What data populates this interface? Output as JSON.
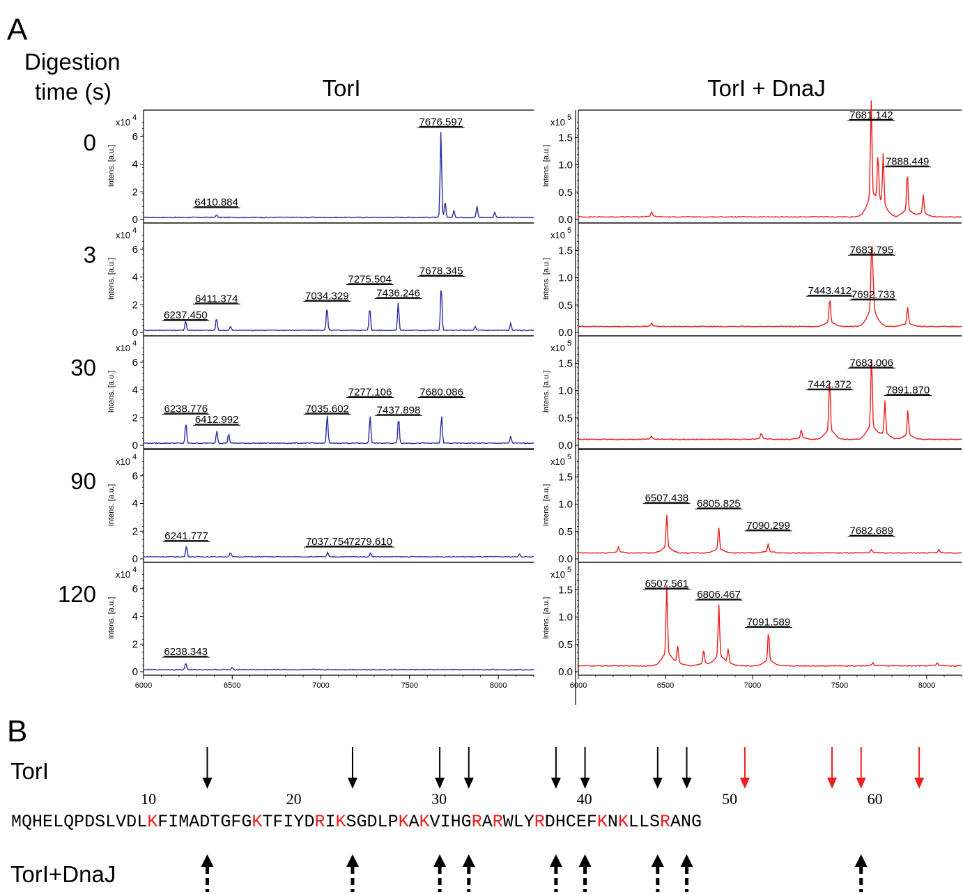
{
  "panels": {
    "a": "A",
    "b": "B"
  },
  "digestion_label_line1": "Digestion",
  "digestion_label_line2": "time (s)",
  "col_headers": [
    "TorI",
    "TorI + DnaJ"
  ],
  "times": [
    "0",
    "3",
    "30",
    "90",
    "120"
  ],
  "y_axis_label": "Intens. [a.u.]",
  "left_exponent": "x10",
  "left_exponent_power": "4",
  "right_exponent": "x10",
  "right_exponent_power": "5",
  "colors": {
    "torI": "#2b2ba0",
    "torI_dnaj": "#ee1c1c",
    "site": "#ee1c1c"
  },
  "chart_data": [
    {
      "type": "line",
      "name": "TorI",
      "x_ticks": [
        "6000",
        "6500",
        "7000",
        "7500",
        "8000"
      ],
      "y_ticks": [
        "0",
        "2",
        "4",
        "6"
      ],
      "xlim": [
        6000,
        8200
      ],
      "ylim": [
        0,
        7.5
      ],
      "rows": [
        {
          "time": "0",
          "peaks": [
            {
              "mz": 6410.884,
              "h": 0.2,
              "label": "6410.884",
              "ly": 1.0
            },
            {
              "mz": 7676.597,
              "h": 6.2,
              "label": "7676.597",
              "ly": 6.8
            },
            {
              "mz": 7700,
              "h": 1.2
            },
            {
              "mz": 7750,
              "h": 0.5
            },
            {
              "mz": 7880,
              "h": 0.8
            },
            {
              "mz": 7980,
              "h": 0.4
            }
          ]
        },
        {
          "time": "3",
          "peaks": [
            {
              "mz": 6237.45,
              "h": 0.7,
              "label": "6237.450",
              "ly": 1.0
            },
            {
              "mz": 6411.374,
              "h": 0.9,
              "label": "6411.374",
              "ly": 2.2
            },
            {
              "mz": 6490,
              "h": 0.3
            },
            {
              "mz": 7034.329,
              "h": 1.7,
              "label": "7034.329",
              "ly": 2.4
            },
            {
              "mz": 7275.504,
              "h": 1.7,
              "label": "7275.504",
              "ly": 3.6
            },
            {
              "mz": 7436.246,
              "h": 2.0,
              "label": "7436.246",
              "ly": 2.6
            },
            {
              "mz": 7678.345,
              "h": 3.3,
              "label": "7678.345",
              "ly": 4.2
            },
            {
              "mz": 7870,
              "h": 0.3
            },
            {
              "mz": 8070,
              "h": 0.5
            }
          ]
        },
        {
          "time": "30",
          "peaks": [
            {
              "mz": 6238.776,
              "h": 1.5,
              "label": "6238.776",
              "ly": 2.4
            },
            {
              "mz": 6412.992,
              "h": 0.9,
              "label": "6412.992",
              "ly": 1.6
            },
            {
              "mz": 6480,
              "h": 0.7
            },
            {
              "mz": 7035.602,
              "h": 2.1,
              "label": "7035.602",
              "ly": 2.4
            },
            {
              "mz": 7277.106,
              "h": 2.0,
              "label": "7277.106",
              "ly": 3.6
            },
            {
              "mz": 7437.898,
              "h": 1.9,
              "label": "7437.898",
              "ly": 2.3
            },
            {
              "mz": 7680.086,
              "h": 2.0,
              "label": "7680.086",
              "ly": 3.6
            },
            {
              "mz": 8070,
              "h": 0.5
            }
          ]
        },
        {
          "time": "90",
          "peaks": [
            {
              "mz": 6241.777,
              "h": 0.8,
              "label": "6241.777",
              "ly": 1.4
            },
            {
              "mz": 6490,
              "h": 0.3
            },
            {
              "mz": 7037.754,
              "h": 0.3,
              "label": "7037.754",
              "ly": 1.0
            },
            {
              "mz": 7279.61,
              "h": 0.3,
              "label": "7279.610",
              "ly": 1.0
            },
            {
              "mz": 8120,
              "h": 0.2
            }
          ]
        },
        {
          "time": "120",
          "peaks": [
            {
              "mz": 6238.343,
              "h": 0.5,
              "label": "6238.343",
              "ly": 1.2
            },
            {
              "mz": 6500,
              "h": 0.15
            }
          ]
        }
      ]
    },
    {
      "type": "line",
      "name": "TorI + DnaJ",
      "x_ticks": [
        "6000",
        "6500",
        "7000",
        "7500",
        "8000"
      ],
      "y_ticks": [
        "0.0",
        "0.5",
        "1.0",
        "1.5"
      ],
      "xlim": [
        6000,
        8200
      ],
      "ylim": [
        0,
        1.9
      ],
      "rows": [
        {
          "time": "0",
          "peaks": [
            {
              "mz": 6420,
              "h": 0.08
            },
            {
              "mz": 7681.142,
              "h": 1.75,
              "label": "7681.142",
              "ly": 1.85
            },
            {
              "mz": 7720,
              "h": 0.8
            },
            {
              "mz": 7750,
              "h": 0.9
            },
            {
              "mz": 7888.449,
              "h": 0.7,
              "label": "7888.449",
              "ly": 1.0
            },
            {
              "mz": 7980,
              "h": 0.35
            }
          ]
        },
        {
          "time": "3",
          "peaks": [
            {
              "mz": 6420,
              "h": 0.05
            },
            {
              "mz": 7443.412,
              "h": 0.45,
              "label": "7443.412",
              "ly": 0.7
            },
            {
              "mz": 7683.795,
              "h": 1.25,
              "label": "7683.795",
              "ly": 1.45
            },
            {
              "mz": 7692.733,
              "h": 0.45,
              "label": "7692.733",
              "ly": 0.63
            },
            {
              "mz": 7890,
              "h": 0.3
            }
          ]
        },
        {
          "time": "30",
          "peaks": [
            {
              "mz": 6420,
              "h": 0.05
            },
            {
              "mz": 7050,
              "h": 0.1
            },
            {
              "mz": 7280,
              "h": 0.15
            },
            {
              "mz": 7442.372,
              "h": 0.95,
              "label": "7442.372",
              "ly": 1.05
            },
            {
              "mz": 7683.006,
              "h": 1.3,
              "label": "7683.006",
              "ly": 1.45
            },
            {
              "mz": 7760,
              "h": 0.6
            },
            {
              "mz": 7891.87,
              "h": 0.45,
              "label": "7891.870",
              "ly": 0.95
            }
          ]
        },
        {
          "time": "90",
          "peaks": [
            {
              "mz": 6230,
              "h": 0.1
            },
            {
              "mz": 6507.438,
              "h": 0.6,
              "label": "6507.438",
              "ly": 1.05
            },
            {
              "mz": 6805.825,
              "h": 0.4,
              "label": "6805.825",
              "ly": 0.95
            },
            {
              "mz": 7090.299,
              "h": 0.15,
              "label": "7090.299",
              "ly": 0.55
            },
            {
              "mz": 7682.689,
              "h": 0.05,
              "label": "7682.689",
              "ly": 0.45
            },
            {
              "mz": 8070,
              "h": 0.05
            }
          ]
        },
        {
          "time": "120",
          "peaks": [
            {
              "mz": 6507.561,
              "h": 1.25,
              "label": "6507.561",
              "ly": 1.55
            },
            {
              "mz": 6570,
              "h": 0.3
            },
            {
              "mz": 6720,
              "h": 0.25
            },
            {
              "mz": 6806.467,
              "h": 0.95,
              "label": "6806.467",
              "ly": 1.35
            },
            {
              "mz": 6860,
              "h": 0.25
            },
            {
              "mz": 7091.589,
              "h": 0.55,
              "label": "7091.589",
              "ly": 0.85
            },
            {
              "mz": 7690,
              "h": 0.05
            },
            {
              "mz": 8060,
              "h": 0.05
            }
          ]
        }
      ]
    }
  ],
  "sequence": {
    "text": "MQHELQPDSLVDLKFIMADTGFGKTFIYDRIKSGDLPKAKVIHGRARWLYRDHCEFKNKLLSRANG",
    "numbers": [
      "10",
      "20",
      "30",
      "40",
      "50",
      "60"
    ],
    "red_positions": [
      14,
      24,
      30,
      32,
      38,
      40,
      45,
      47,
      51,
      57,
      59,
      63
    ],
    "torI_label": "TorI",
    "torI_dnaj_label": "TorI+DnaJ",
    "torI_black_arrows": [
      14,
      24,
      30,
      32,
      38,
      40,
      45,
      47
    ],
    "torI_red_arrows": [
      51,
      57,
      59,
      63
    ],
    "dnaj_arrows": [
      14,
      24,
      30,
      32,
      38,
      40,
      45,
      47,
      59
    ]
  }
}
